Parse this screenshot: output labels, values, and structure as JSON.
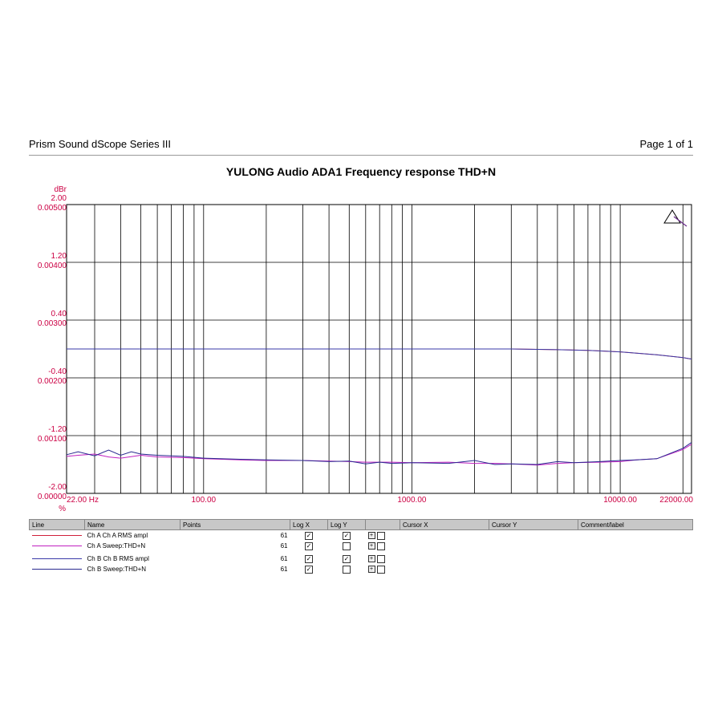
{
  "header": {
    "app": "Prism Sound dScope Series III",
    "page": "Page 1 of 1"
  },
  "chart_data": {
    "type": "line",
    "title": "YULONG Audio ADA1 Frequency response THD+N",
    "x_scale": "log",
    "xlim": [
      22,
      22000
    ],
    "x_ticks": [
      "22.00 Hz",
      "100.00",
      "1000.00",
      "10000.00",
      "22000.00"
    ],
    "y_left": {
      "unit": "dBr",
      "ylim": [
        -2.0,
        2.0
      ],
      "ticks": [
        "2.00",
        "1.20",
        "0.40",
        "-0.40",
        "-1.20",
        "-2.00"
      ]
    },
    "y_right": {
      "unit": "%",
      "ylim": [
        0.0,
        0.005
      ],
      "ticks": [
        "0.00500",
        "0.00400",
        "0.00300",
        "0.00200",
        "0.00100",
        "0.00000"
      ]
    },
    "grid": true,
    "series": [
      {
        "name": "Ch A Ch A RMS ampl",
        "axis": "left",
        "color": "#d0203a",
        "x": [
          22,
          30,
          50,
          100,
          200,
          400,
          500,
          700,
          1000,
          2000,
          3000,
          5000,
          7000,
          10000,
          15000,
          20000,
          22000
        ],
        "y": [
          0.0,
          0.0,
          0.0,
          0.0,
          0.0,
          0.0,
          0.0,
          0.0,
          0.0,
          0.0,
          0.0,
          -0.01,
          -0.02,
          -0.04,
          -0.08,
          -0.12,
          -0.14
        ]
      },
      {
        "name": "Ch A Sweep:THD+N",
        "axis": "right",
        "color": "#c020c0",
        "x": [
          22,
          25,
          30,
          35,
          40,
          50,
          60,
          80,
          100,
          150,
          200,
          300,
          400,
          500,
          600,
          800,
          1000,
          1500,
          2000,
          2500,
          3000,
          4000,
          5000,
          6000,
          8000,
          10000,
          12000,
          15000,
          20000,
          22000
        ],
        "y": [
          0.00064,
          0.00066,
          0.00068,
          0.00063,
          0.00061,
          0.00066,
          0.00063,
          0.00062,
          0.0006,
          0.00058,
          0.00057,
          0.00057,
          0.00056,
          0.00055,
          0.00054,
          0.00054,
          0.00053,
          0.00054,
          0.00052,
          0.00052,
          0.00051,
          0.00049,
          0.00052,
          0.00053,
          0.00054,
          0.00055,
          0.00058,
          0.0006,
          0.00076,
          0.00085
        ]
      },
      {
        "name": "Ch B Ch B RMS ampl",
        "axis": "left",
        "color": "#3a3aa8",
        "x": [
          22,
          30,
          50,
          100,
          200,
          400,
          500,
          700,
          1000,
          2000,
          3000,
          5000,
          7000,
          10000,
          15000,
          20000,
          22000
        ],
        "y": [
          0.0,
          0.0,
          0.0,
          0.0,
          0.0,
          0.0,
          0.0,
          0.0,
          0.0,
          0.0,
          0.0,
          -0.01,
          -0.02,
          -0.04,
          -0.08,
          -0.12,
          -0.14
        ]
      },
      {
        "name": "Ch B Sweep:THD+N",
        "axis": "right",
        "color": "#2a2a90",
        "x": [
          22,
          25,
          30,
          35,
          40,
          45,
          50,
          60,
          80,
          100,
          150,
          200,
          300,
          400,
          500,
          600,
          700,
          800,
          1000,
          1500,
          2000,
          2500,
          3000,
          4000,
          5000,
          6000,
          8000,
          10000,
          12000,
          15000,
          20000,
          22000
        ],
        "y": [
          0.00067,
          0.00072,
          0.00065,
          0.00075,
          0.00066,
          0.00072,
          0.00068,
          0.00066,
          0.00064,
          0.00061,
          0.00059,
          0.00058,
          0.00057,
          0.00055,
          0.00056,
          0.00051,
          0.00054,
          0.00052,
          0.00053,
          0.00052,
          0.00057,
          0.0005,
          0.00051,
          0.0005,
          0.00055,
          0.00053,
          0.00055,
          0.00057,
          0.00058,
          0.0006,
          0.00078,
          0.00088
        ]
      }
    ]
  },
  "legend": {
    "columns": [
      "Line",
      "Name",
      "Points",
      "Log X",
      "Log Y",
      "",
      "Cursor X",
      "Cursor Y",
      "Comment/label"
    ],
    "rows": [
      {
        "name": "Ch A Ch A RMS ampl",
        "points": "61",
        "color": "#d0203a",
        "logx": "☑",
        "logy": "☑",
        "plus": "+",
        "cursor": "☐"
      },
      {
        "name": "Ch A Sweep:THD+N",
        "points": "61",
        "color": "#c020c0",
        "logx": "☑",
        "logy": "☐",
        "plus": "+",
        "cursor": "☐"
      },
      {
        "name": "Ch B Ch B RMS ampl",
        "points": "61",
        "color": "#3a3aa8",
        "logx": "☑",
        "logy": "☑",
        "plus": "+",
        "cursor": "☐"
      },
      {
        "name": "Ch B Sweep:THD+N",
        "points": "61",
        "color": "#2a2a90",
        "logx": "☑",
        "logy": "☐",
        "plus": "+",
        "cursor": "☐"
      }
    ]
  }
}
